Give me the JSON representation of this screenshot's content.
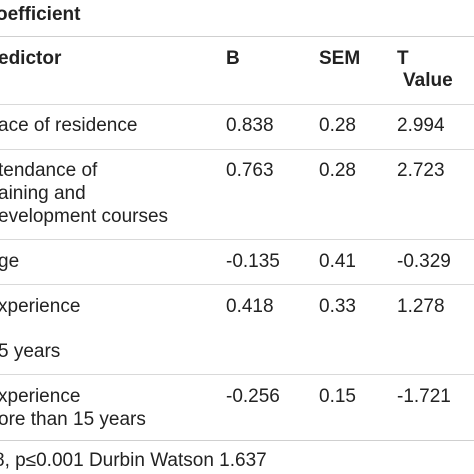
{
  "table": {
    "title": "oefficient",
    "headers": {
      "predictor": "edictor",
      "b": "B",
      "sem": "SEM",
      "t_line1": "T",
      "t_line2": "Value"
    },
    "rows": [
      {
        "predictor": [
          "ace of residence"
        ],
        "b": "0.838",
        "sem": "0.28",
        "t": "2.994"
      },
      {
        "predictor": [
          "tendance of",
          "aining and",
          "evelopment courses"
        ],
        "b": "0.763",
        "sem": "0.28",
        "t": "2.723"
      },
      {
        "predictor": [
          "ge"
        ],
        "b": "-0.135",
        "sem": "0.41",
        "t": "-0.329"
      },
      {
        "predictor": [
          "xperience",
          "",
          "5 years"
        ],
        "b": "0.418",
        "sem": "0.33",
        "t": "1.278"
      },
      {
        "predictor": [
          "xperience",
          "ore than 15 years"
        ],
        "b": "-0.256",
        "sem": "0.15",
        "t": "-1.721"
      }
    ],
    "footer": "8, p≤0.001 Durbin Watson 1.637"
  }
}
